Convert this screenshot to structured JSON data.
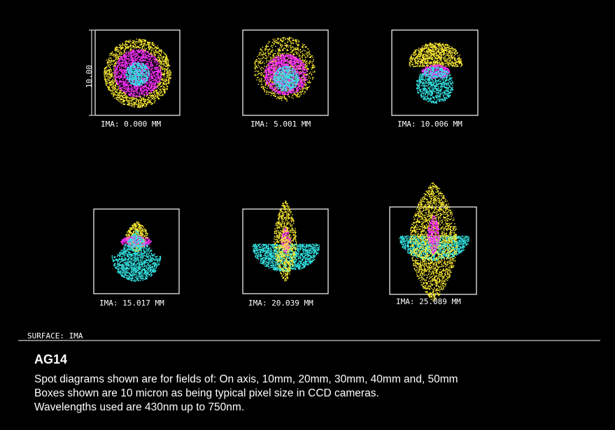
{
  "diagram": {
    "scale_label": "10.00",
    "surface_label": "SURFACE: IMA",
    "colors": {
      "blue": "#33e6e6",
      "green": "#ff33ff",
      "red": "#ffee33",
      "frame": "#ffffff",
      "background": "#000000"
    },
    "spots": [
      {
        "id": "field-1",
        "label": "IMA: 0.000 MM"
      },
      {
        "id": "field-2",
        "label": "IMA: 5.001 MM"
      },
      {
        "id": "field-3",
        "label": "IMA: 10.006 MM"
      },
      {
        "id": "field-4",
        "label": "IMA: 15.017 MM"
      },
      {
        "id": "field-5",
        "label": "IMA: 20.039 MM"
      },
      {
        "id": "field-6",
        "label": "IMA: 25.089 MM"
      }
    ]
  },
  "caption": {
    "title": "AG14",
    "lines": [
      "Spot diagrams shown are for fields of: On axis, 10mm, 20mm, 30mm, 40mm and, 50mm",
      "Boxes shown are 10 micron as being typical pixel size in CCD cameras.",
      "Wavelengths used are 430nm up to 750nm."
    ]
  }
}
